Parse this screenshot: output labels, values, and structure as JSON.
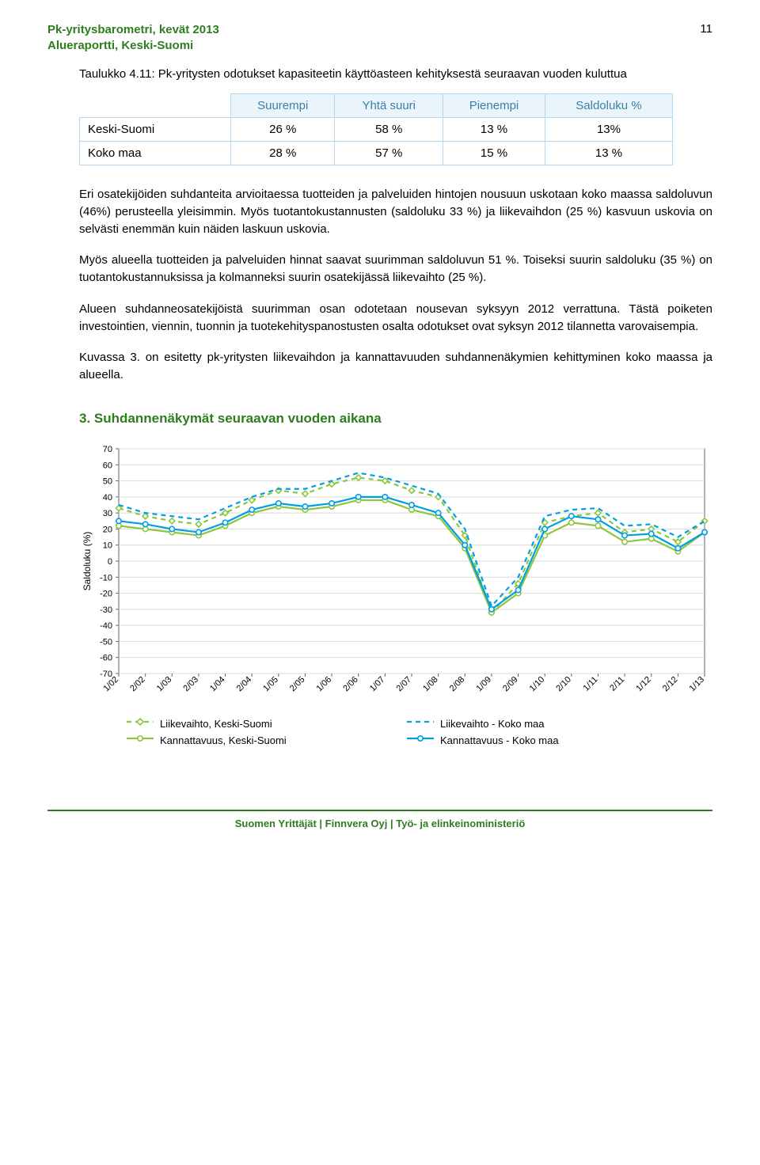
{
  "header": {
    "title_line1": "Pk-yritysbarometri, kevät 2013",
    "title_line2": "Alueraportti, Keski-Suomi",
    "page_number": "11"
  },
  "table": {
    "caption": "Taulukko 4.11: Pk-yritysten odotukset kapasiteetin käyttöasteen kehityksestä seuraavan vuoden kuluttua",
    "columns": [
      "",
      "Suurempi",
      "Yhtä suuri",
      "Pienempi",
      "Saldoluku %"
    ],
    "rows": [
      [
        "Keski-Suomi",
        "26 %",
        "58 %",
        "13 %",
        "13%"
      ],
      [
        "Koko maa",
        "28 %",
        "57 %",
        "15 %",
        "13 %"
      ]
    ]
  },
  "paragraphs": [
    "Eri osatekijöiden suhdanteita arvioitaessa tuotteiden ja palveluiden hintojen nousuun uskotaan koko maassa saldoluvun (46%) perusteella yleisimmin. Myös tuotantokustannusten (saldoluku 33 %) ja liikevaihdon (25 %) kasvuun uskovia on selvästi enemmän kuin näiden laskuun uskovia.",
    "Myös alueella tuotteiden ja palveluiden hinnat saavat suurimman saldoluvun 51 %. Toiseksi suurin saldoluku (35 %) on tuotantokustannuksissa ja kolmanneksi suurin osatekijässä liikevaihto (25 %).",
    "Alueen suhdanneosatekijöistä suurimman osan odotetaan nousevan syksyyn 2012 verrattuna. Tästä poiketen investointien, viennin, tuonnin ja tuotekehityspanostusten osalta odotukset ovat syksyn 2012 tilannetta varovaisempia.",
    "Kuvassa 3. on esitetty pk-yritysten liikevaihdon ja kannattavuuden suhdannenäkymien kehittyminen koko maassa ja alueella."
  ],
  "section_heading": "3. Suhdannenäkymät seuraavan vuoden aikana",
  "chart": {
    "type": "line",
    "y_label": "Saldoluku (%)",
    "ylim": [
      -70,
      70
    ],
    "ytick_step": 10,
    "x_categories": [
      "1/02",
      "2/02",
      "1/03",
      "2/03",
      "1/04",
      "2/04",
      "1/05",
      "2/05",
      "1/06",
      "2/06",
      "1/07",
      "2/07",
      "1/08",
      "2/08",
      "1/09",
      "2/09",
      "1/10",
      "2/10",
      "1/11",
      "2/11",
      "1/12",
      "2/12",
      "1/13"
    ],
    "background_color": "#ffffff",
    "grid_color": "#d9d9d9",
    "axis_color": "#666666",
    "tick_fontsize": 11,
    "series": {
      "liikevaihto_keski": {
        "label": "Liikevaihto, Keski-Suomi",
        "color": "#8dc63f",
        "dash": "6,5",
        "marker": "diamond",
        "marker_color": "#8dc63f",
        "data": [
          33,
          28,
          25,
          23,
          30,
          38,
          44,
          42,
          48,
          52,
          50,
          44,
          40,
          16,
          -32,
          -14,
          24,
          28,
          30,
          18,
          20,
          12,
          25
        ]
      },
      "liikevaihto_koko": {
        "label": "Liikevaihto - Koko maa",
        "color": "#009fe3",
        "dash": "6,5",
        "marker": "none",
        "data": [
          35,
          30,
          28,
          26,
          33,
          40,
          45,
          45,
          50,
          55,
          52,
          47,
          42,
          20,
          -28,
          -10,
          28,
          32,
          33,
          22,
          23,
          15,
          25
        ]
      },
      "kannattavuus_keski": {
        "label": "Kannattavuus, Keski-Suomi",
        "color": "#8dc63f",
        "dash": "none",
        "marker": "circle",
        "marker_color": "#8dc63f",
        "data": [
          22,
          20,
          18,
          16,
          22,
          30,
          34,
          32,
          34,
          38,
          38,
          32,
          28,
          8,
          -32,
          -20,
          16,
          24,
          22,
          12,
          14,
          6,
          18
        ]
      },
      "kannattavuus_koko": {
        "label": "Kannattavuus - Koko maa",
        "color": "#009fe3",
        "dash": "none",
        "marker": "circle",
        "marker_color": "#009fe3",
        "data": [
          25,
          23,
          20,
          18,
          24,
          32,
          36,
          34,
          36,
          40,
          40,
          35,
          30,
          10,
          -30,
          -18,
          20,
          28,
          26,
          16,
          17,
          8,
          18
        ]
      }
    },
    "legend_order": [
      "liikevaihto_keski",
      "liikevaihto_koko",
      "kannattavuus_keski",
      "kannattavuus_koko"
    ]
  },
  "footer": "Suomen Yrittäjät  |  Finnvera Oyj  |  Työ- ja elinkeinoministeriö"
}
